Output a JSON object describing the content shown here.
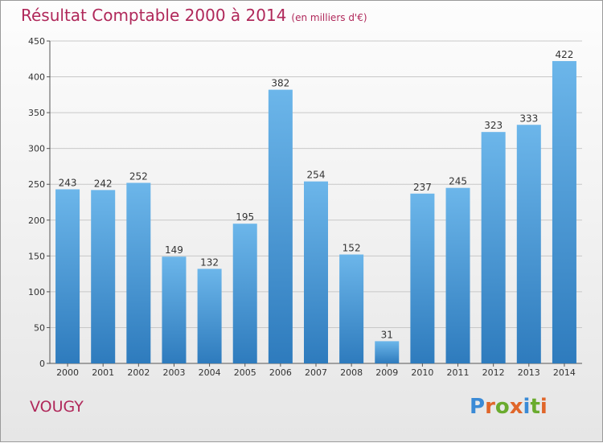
{
  "header": {
    "title": "Résultat Comptable 2000 à 2014",
    "unit": "(en milliers d'€)"
  },
  "footer": {
    "place": "VOUGY",
    "brand_letters": [
      "P",
      "r",
      "o",
      "x",
      "i",
      "t",
      "i"
    ],
    "brand_colors": [
      "#3a8ad6",
      "#e0662a",
      "#6aab2e",
      "#e0662a",
      "#3a8ad6",
      "#6aab2e",
      "#e0662a"
    ]
  },
  "colors": {
    "bar_light": "#6cb6ea",
    "bar_dark": "#2e7bbd",
    "title": "#b0285a",
    "grid": "#c8c8c8"
  },
  "chart_data": {
    "type": "bar",
    "title": "Résultat Comptable 2000 à 2014",
    "subtitle": "(en milliers d'€)",
    "xlabel": "",
    "ylabel": "",
    "categories": [
      "2000",
      "2001",
      "2002",
      "2003",
      "2004",
      "2005",
      "2006",
      "2007",
      "2008",
      "2009",
      "2010",
      "2011",
      "2012",
      "2013",
      "2014"
    ],
    "values": [
      243,
      242,
      252,
      149,
      132,
      195,
      382,
      254,
      152,
      31,
      237,
      245,
      323,
      333,
      422
    ],
    "ylim": [
      0,
      450
    ],
    "yticks": [
      0,
      50,
      100,
      150,
      200,
      250,
      300,
      350,
      400,
      450
    ],
    "grid": true,
    "legend": "none"
  }
}
